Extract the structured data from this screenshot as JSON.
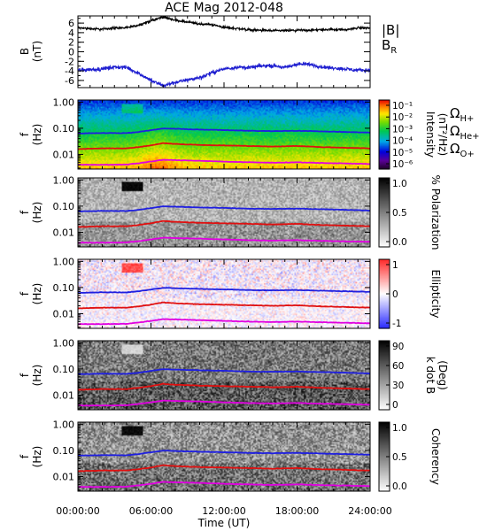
{
  "title": "ACE Mag 2012-048",
  "xlabel": "Time (UT)",
  "x_ticks": [
    "00:00:00",
    "06:00:00",
    "12:00:00",
    "18:00:00",
    "24:00:00"
  ],
  "colors": {
    "b_total": "#000000",
    "b_r": "#1f1fd0",
    "omega_h": "#1f1fe0",
    "omega_he": "#e01010",
    "omega_o": "#e000e0"
  },
  "chart_data": [
    {
      "type": "line",
      "ylabel": "B",
      "ylabel_unit": "(nT)",
      "xlim": [
        0,
        24
      ],
      "ylim": [
        -7.5,
        7.5
      ],
      "y_ticks": [
        "6",
        "4",
        "2",
        "0",
        "-2",
        "-4",
        "-6"
      ],
      "legend": [
        {
          "key": "B_total",
          "label": "|B|",
          "color_key": "b_total"
        },
        {
          "key": "B_R",
          "label": "B",
          "sub": "R",
          "color_key": "b_r"
        }
      ],
      "series": [
        {
          "key": "B_total",
          "x": [
            0,
            2,
            3,
            4,
            5,
            6,
            7,
            8,
            9,
            10,
            11,
            12,
            13,
            14,
            15,
            16,
            17,
            18,
            19,
            20,
            21,
            22,
            23,
            24
          ],
          "y": [
            5.0,
            4.7,
            5.0,
            5.0,
            5.6,
            6.5,
            7.3,
            6.6,
            6.2,
            5.8,
            5.7,
            5.1,
            4.9,
            4.6,
            4.5,
            4.4,
            4.4,
            4.5,
            4.5,
            4.6,
            4.7,
            4.6,
            5.0,
            5.0
          ]
        },
        {
          "key": "B_R",
          "x": [
            0,
            2,
            3,
            4,
            5,
            6,
            7,
            8,
            9,
            10,
            11,
            12,
            13,
            14,
            15,
            16,
            17,
            18,
            19,
            20,
            21,
            22,
            23,
            24
          ],
          "y": [
            -3.8,
            -3.6,
            -3.2,
            -3.3,
            -4.5,
            -6.0,
            -7.1,
            -6.4,
            -5.9,
            -5.4,
            -4.4,
            -3.6,
            -3.2,
            -3.3,
            -3.0,
            -2.9,
            -3.3,
            -2.6,
            -2.6,
            -3.2,
            -3.4,
            -3.6,
            -3.9,
            -3.8
          ]
        }
      ]
    },
    {
      "type": "heatmap",
      "ylabel": "f",
      "ylabel_unit": "(Hz)",
      "y_ticks": [
        "1.00",
        "0.10",
        "0.01"
      ],
      "colorbar": {
        "label": "Intensity",
        "unit": "(nT²/Hz)",
        "ticks": [
          "10⁻¹",
          "10⁻²",
          "10⁻³",
          "10⁻⁴",
          "10⁻⁵",
          "10⁻⁶"
        ],
        "colormap": "rainbow"
      },
      "legend": [
        {
          "label": "Ω",
          "sub": "H+",
          "color_key": "omega_h"
        },
        {
          "label": "Ω",
          "sub": "He+",
          "color_key": "omega_he"
        },
        {
          "label": "Ω",
          "sub": "O+",
          "color_key": "omega_o"
        }
      ]
    },
    {
      "type": "heatmap",
      "ylabel": "f",
      "ylabel_unit": "(Hz)",
      "y_ticks": [
        "1.00",
        "0.10",
        "0.01"
      ],
      "colorbar": {
        "label": "% Polarization",
        "ticks": [
          "1.0",
          "0.5",
          "0.0"
        ],
        "colormap": "gray"
      }
    },
    {
      "type": "heatmap",
      "ylabel": "f",
      "ylabel_unit": "(Hz)",
      "y_ticks": [
        "1.00",
        "0.10",
        "0.01"
      ],
      "colorbar": {
        "label": "Ellipticity",
        "ticks": [
          "1",
          "0",
          "-1"
        ],
        "colormap": "bwr"
      }
    },
    {
      "type": "heatmap",
      "ylabel": "f",
      "ylabel_unit": "(Hz)",
      "y_ticks": [
        "1.00",
        "0.10",
        "0.01"
      ],
      "colorbar": {
        "label": "k dot B",
        "unit": "(Deg)",
        "ticks": [
          "90",
          "60",
          "30",
          "0"
        ],
        "colormap": "gray"
      }
    },
    {
      "type": "heatmap",
      "ylabel": "f",
      "ylabel_unit": "(Hz)",
      "y_ticks": [
        "1.00",
        "0.10",
        "0.01"
      ],
      "colorbar": {
        "label": "Coherency",
        "ticks": [
          "1.0",
          "0.5",
          "0.0"
        ],
        "colormap": "gray"
      }
    }
  ],
  "gyrofrequency_lines": {
    "x": [
      0,
      2,
      4,
      5,
      6,
      7,
      8,
      10,
      12,
      14,
      16,
      18,
      20,
      22,
      24
    ],
    "H+": [
      0.063,
      0.066,
      0.065,
      0.072,
      0.084,
      0.098,
      0.095,
      0.089,
      0.085,
      0.08,
      0.078,
      0.08,
      0.076,
      0.072,
      0.068
    ],
    "He+": [
      0.016,
      0.017,
      0.017,
      0.019,
      0.022,
      0.027,
      0.025,
      0.023,
      0.022,
      0.021,
      0.02,
      0.021,
      0.019,
      0.018,
      0.017
    ],
    "O+": [
      0.004,
      0.004,
      0.0041,
      0.0046,
      0.0053,
      0.0062,
      0.006,
      0.0057,
      0.0053,
      0.005,
      0.0048,
      0.005,
      0.0047,
      0.0045,
      0.0043
    ]
  }
}
